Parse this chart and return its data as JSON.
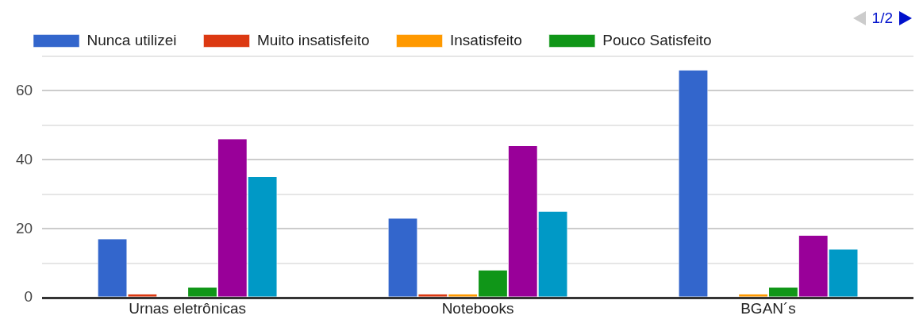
{
  "chart_data": {
    "type": "bar",
    "categories": [
      "Urnas eletrônicas",
      "Notebooks",
      "BGAN´s"
    ],
    "series": [
      {
        "name": "Nunca utilizei",
        "color": "#3366cc",
        "values": [
          17,
          23,
          66
        ]
      },
      {
        "name": "Muito insatisfeito",
        "color": "#dc3912",
        "values": [
          1,
          1,
          0
        ]
      },
      {
        "name": "Insatisfeito",
        "color": "#ff9900",
        "values": [
          0,
          1,
          1
        ]
      },
      {
        "name": "Pouco Satisfeito",
        "color": "#109618",
        "values": [
          3,
          8,
          3
        ]
      },
      {
        "color": "#990099",
        "values": [
          46,
          44,
          18
        ]
      },
      {
        "color": "#0099c6",
        "values": [
          35,
          25,
          14
        ]
      }
    ],
    "ylim": [
      0,
      70
    ],
    "yticks": [
      0,
      {
        "value": 10,
        "label": null
      },
      20,
      {
        "value": 30,
        "label": null
      },
      40,
      {
        "value": 50,
        "label": null
      },
      60,
      {
        "value": 70,
        "label": null
      }
    ],
    "grid": "y",
    "legend": "top",
    "annotations": [
      "1/2"
    ]
  }
}
